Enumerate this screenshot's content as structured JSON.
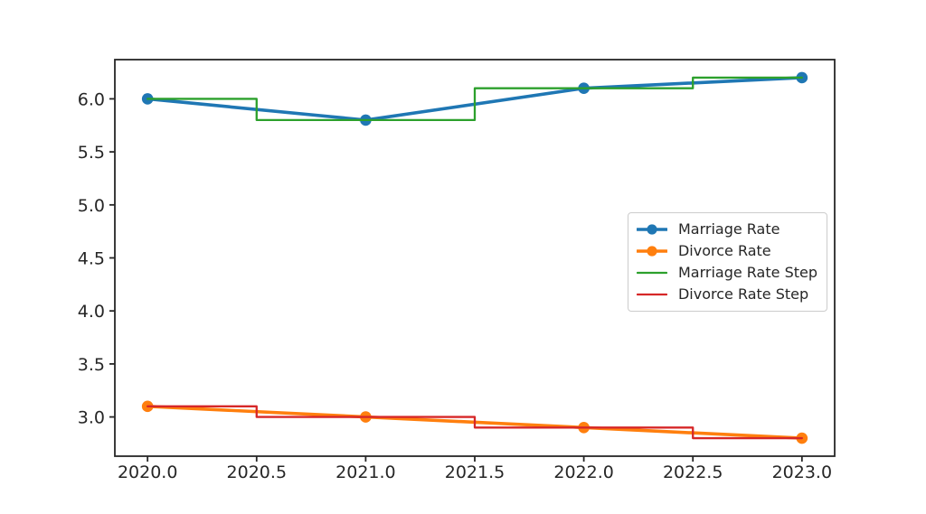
{
  "chart_data": {
    "type": "line",
    "x": [
      2020,
      2021,
      2022,
      2023
    ],
    "series": [
      {
        "name": "Marriage Rate",
        "values": [
          6.0,
          5.8,
          6.1,
          6.2
        ],
        "color": "#1f77b4",
        "marker": "circle",
        "style": "line",
        "linewidth": 3.6
      },
      {
        "name": "Divorce Rate",
        "values": [
          3.1,
          3.0,
          2.9,
          2.8
        ],
        "color": "#ff7f0e",
        "marker": "circle",
        "style": "line",
        "linewidth": 3.6
      },
      {
        "name": "Marriage Rate Step",
        "values": [
          6.0,
          5.8,
          6.1,
          6.2
        ],
        "color": "#2ca02c",
        "marker": "none",
        "style": "step-mid",
        "linewidth": 2.3
      },
      {
        "name": "Divorce Rate Step",
        "values": [
          3.1,
          3.0,
          2.9,
          2.8
        ],
        "color": "#d62728",
        "marker": "none",
        "style": "step-mid",
        "linewidth": 2.3
      }
    ],
    "xticks": [
      2020.0,
      2020.5,
      2021.0,
      2021.5,
      2022.0,
      2022.5,
      2023.0
    ],
    "xtick_labels": [
      "2020.0",
      "2020.5",
      "2021.0",
      "2021.5",
      "2022.0",
      "2022.5",
      "2023.0"
    ],
    "yticks": [
      3.0,
      3.5,
      4.0,
      4.5,
      5.0,
      5.5,
      6.0
    ],
    "ytick_labels": [
      "3.0",
      "3.5",
      "4.0",
      "4.5",
      "5.0",
      "5.5",
      "6.0"
    ],
    "xlim": [
      2019.85,
      2023.15
    ],
    "ylim": [
      2.63,
      6.37
    ],
    "title": "",
    "xlabel": "",
    "ylabel": "",
    "grid": false,
    "legend": {
      "position": "center-right",
      "entries": [
        "Marriage Rate",
        "Divorce Rate",
        "Marriage Rate Step",
        "Divorce Rate Step"
      ]
    },
    "marker_radius": 6.3,
    "axis_color": "#262626",
    "tick_label_color": "#262626",
    "tick_font_size": 19,
    "background": "#ffffff"
  }
}
